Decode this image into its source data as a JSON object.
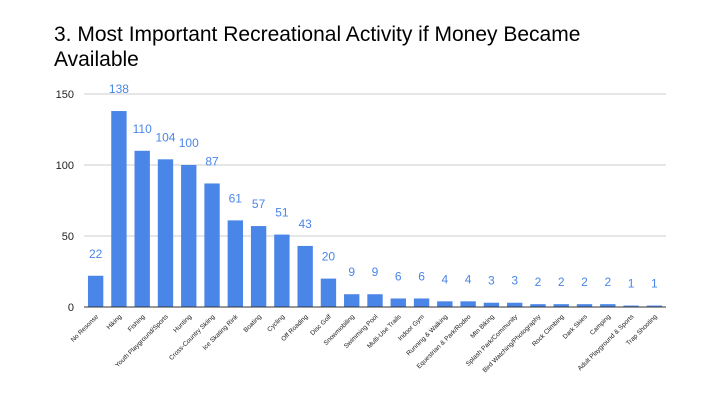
{
  "chart_data": {
    "type": "bar",
    "title": "3. Most Important Recreational Activity if Money Became Available",
    "xlabel": "",
    "ylabel": "",
    "ylim": [
      0,
      150
    ],
    "yticks": [
      0,
      50,
      100,
      150
    ],
    "grid": true,
    "legend": "none",
    "bar_color": "#4a86e8",
    "label_color": "#4a86e8",
    "categories": [
      "No Resonse",
      "Hiking",
      "Fishing",
      "Youth Playground/Sports",
      "Hunting",
      "Cross-Country Skiing",
      "Ice Skating Rink",
      "Boating",
      "Cycling",
      "Off Roading",
      "Disc Golf",
      "Snowmobiling",
      "Swimming Pool",
      "Multi-Use Trails",
      "Indoor Gym",
      "Running & Walking",
      "Equestrian & Park/Rodeo",
      "Mtn Biking",
      "Splash Park/Community",
      "Bird Watching/Photography",
      "Rock Climbing",
      "Dark Skies",
      "Camping",
      "Adult Playground & Sports",
      "Trap Shooting"
    ],
    "values": [
      22,
      138,
      110,
      104,
      100,
      87,
      61,
      57,
      51,
      43,
      20,
      9,
      9,
      6,
      6,
      4,
      4,
      3,
      3,
      2,
      2,
      2,
      2,
      1,
      1
    ]
  }
}
